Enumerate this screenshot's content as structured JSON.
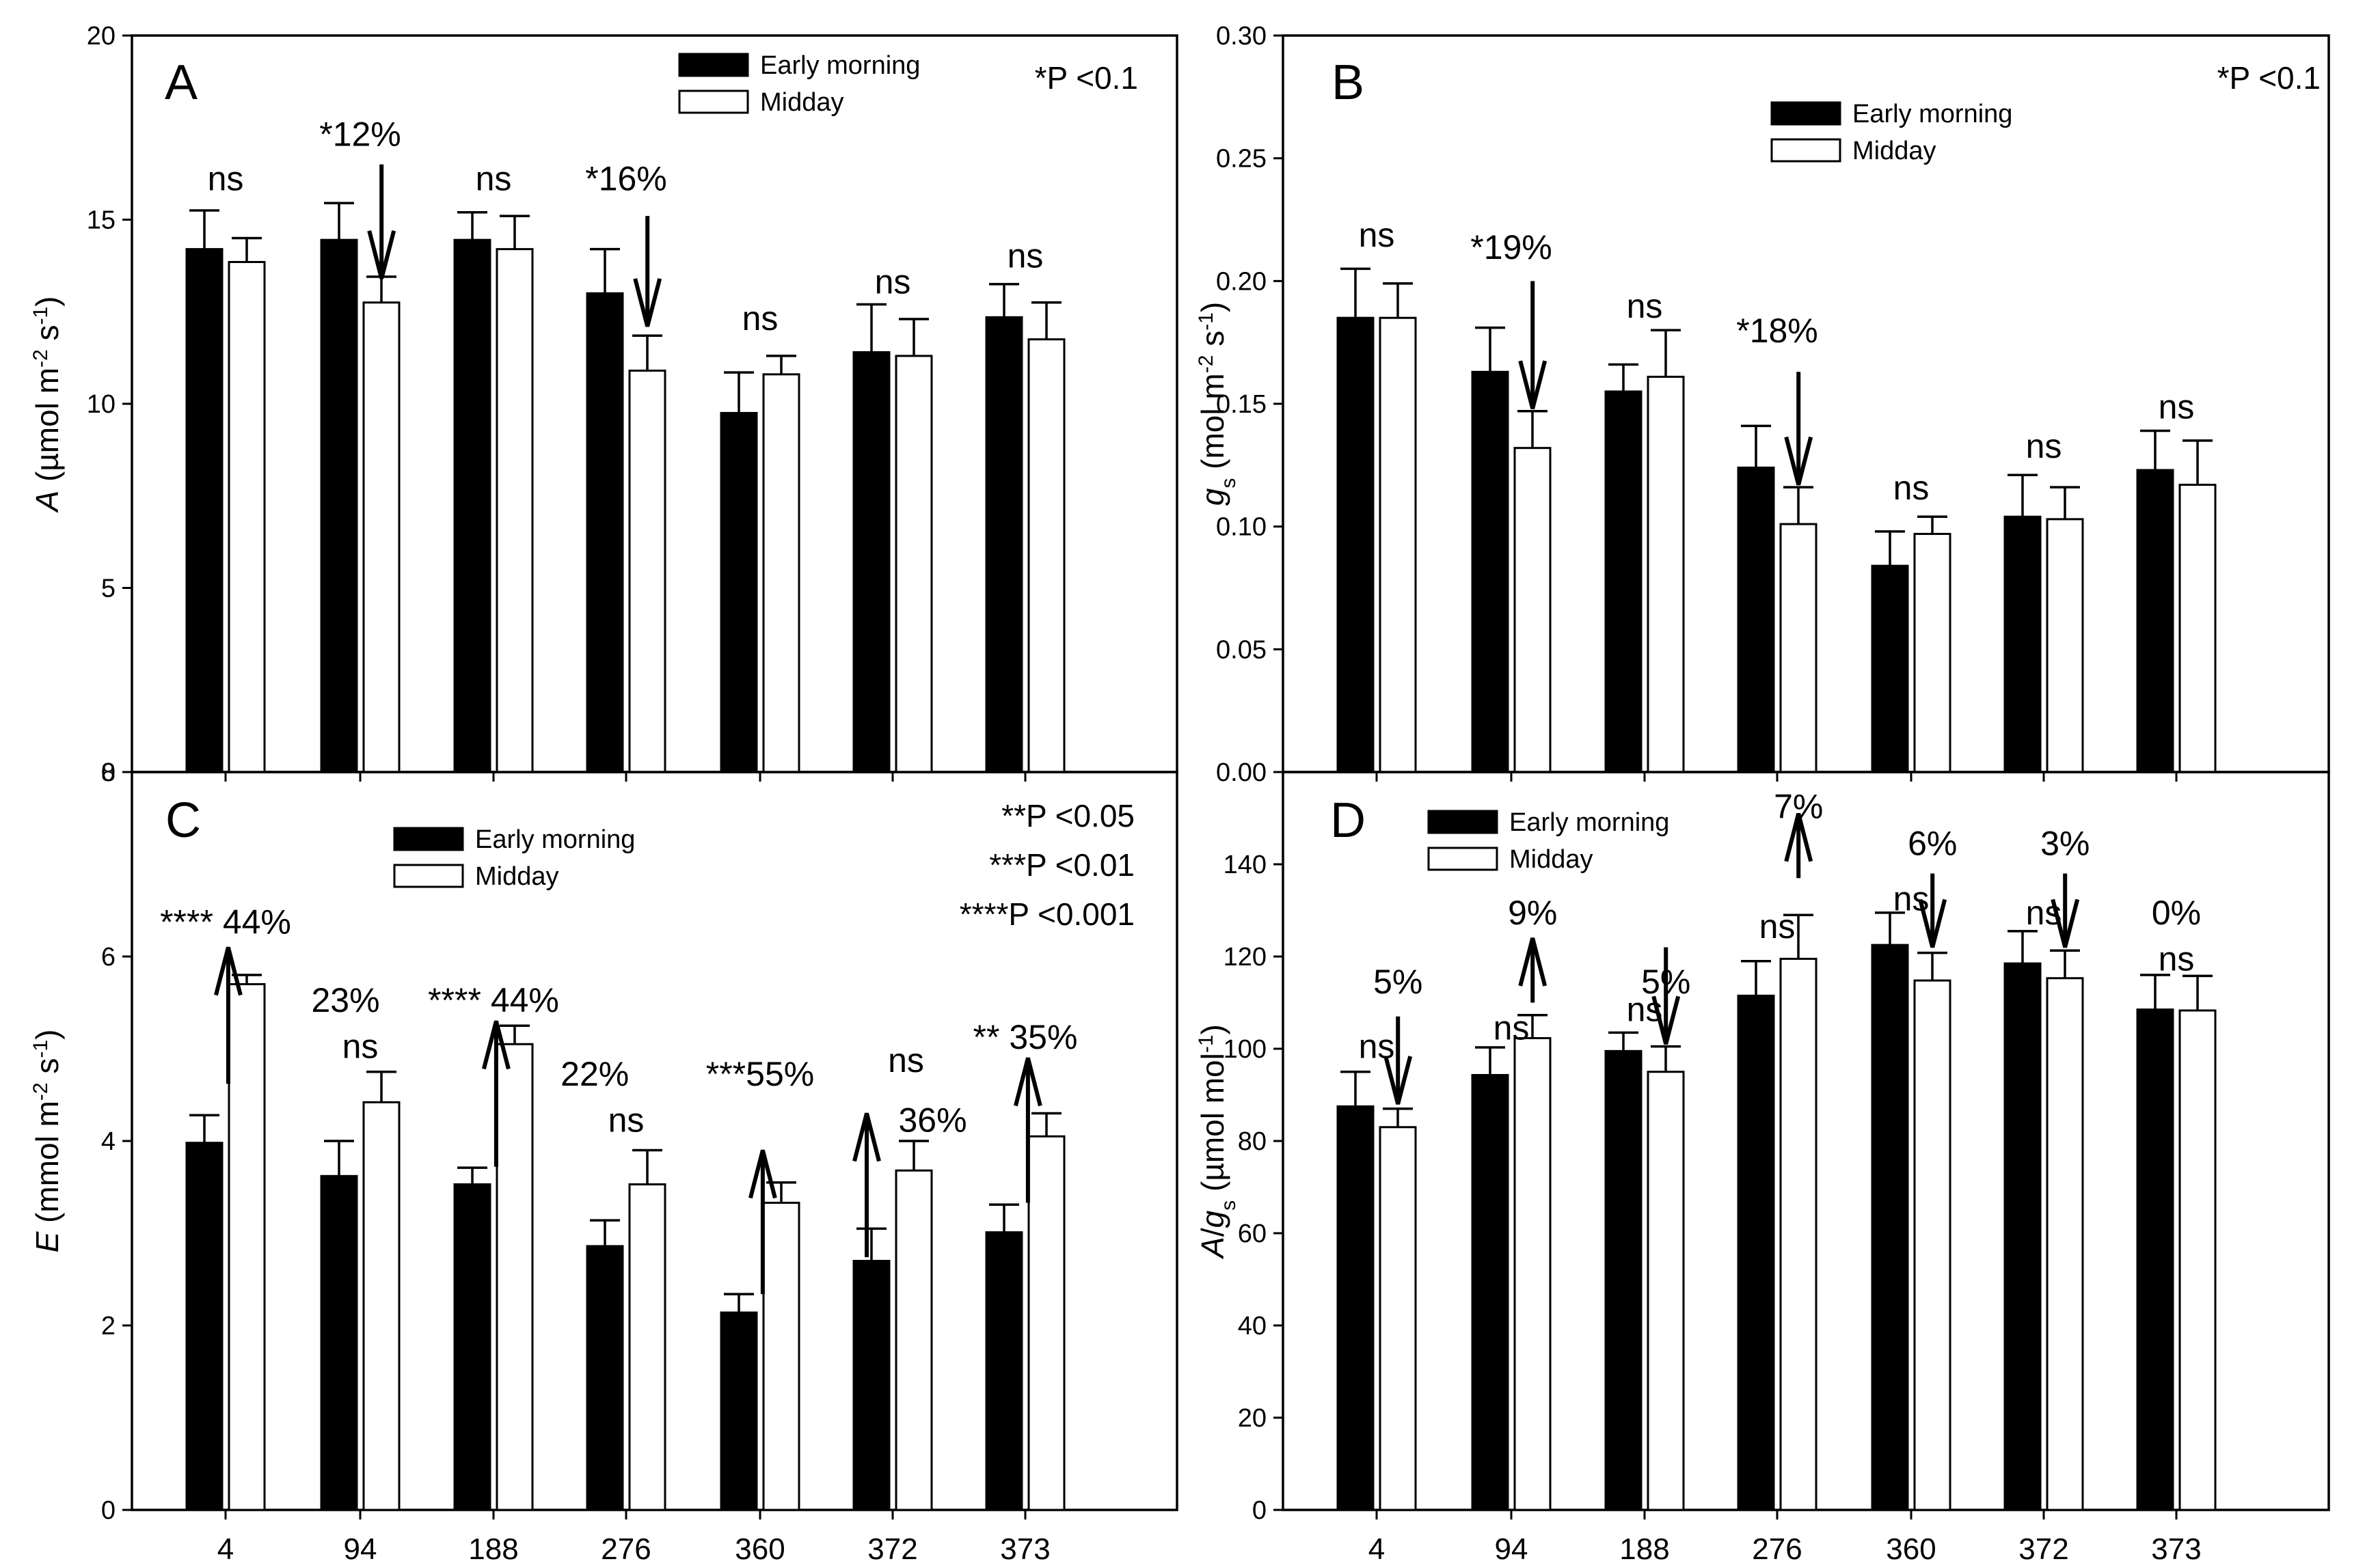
{
  "colors": {
    "early": "#000000",
    "midday": "#ffffff",
    "stroke": "#000000"
  },
  "chart_data": [
    {
      "type": "bar",
      "panel": "A",
      "ylabel_parts": [
        {
          "t": "A",
          "i": true
        },
        {
          "t": " (µmol m"
        },
        {
          "t": "-2",
          "s": "sup"
        },
        {
          "t": " s"
        },
        {
          "t": "-1",
          "s": "sup"
        },
        {
          "t": ")"
        }
      ],
      "ylim": [
        0,
        20
      ],
      "yticks": [
        0,
        5,
        10,
        15,
        20
      ],
      "ytick_labels": [
        "0",
        "5",
        "10",
        "15",
        "20"
      ],
      "show_xticklabels": false,
      "categories": [
        "4",
        "94",
        "188",
        "276",
        "360",
        "372",
        "373"
      ],
      "series": [
        {
          "name": "Early morning",
          "values": [
            14.2,
            14.45,
            14.45,
            13.0,
            9.75,
            11.4,
            12.35
          ],
          "errors": [
            1.05,
            1.0,
            0.75,
            1.2,
            1.1,
            1.3,
            0.9
          ]
        },
        {
          "name": "Midday",
          "values": [
            13.85,
            12.75,
            14.2,
            10.9,
            10.8,
            11.3,
            11.75
          ],
          "errors": [
            0.65,
            0.7,
            0.9,
            0.95,
            0.5,
            1.0,
            1.0
          ]
        }
      ],
      "legend": {
        "labels": [
          "Early morning",
          "Midday"
        ],
        "position": "top-center"
      },
      "significance": [
        "*P <0.1"
      ],
      "annotations": [
        {
          "text": "ns",
          "x": 0,
          "y": 15.8
        },
        {
          "text": "*12%",
          "x": 1,
          "y": 17.0
        },
        {
          "text": "ns",
          "x": 2,
          "y": 15.8
        },
        {
          "text": "*16%",
          "x": 3,
          "y": 15.8
        },
        {
          "text": "ns",
          "x": 4,
          "y": 12.0
        },
        {
          "text": "ns",
          "x": 5,
          "y": 13.0
        },
        {
          "text": "ns",
          "x": 6,
          "y": 13.7
        }
      ],
      "arrows": [
        {
          "x": 1.16,
          "from": 16.5,
          "to": 13.4
        },
        {
          "x": 3.16,
          "from": 15.1,
          "to": 12.1
        }
      ]
    },
    {
      "type": "bar",
      "panel": "B",
      "ylabel_parts": [
        {
          "t": "g",
          "i": true
        },
        {
          "t": "s",
          "s": "sub"
        },
        {
          "t": " (mol m"
        },
        {
          "t": "-2",
          "s": "sup"
        },
        {
          "t": " s"
        },
        {
          "t": "-1",
          "s": "sup"
        },
        {
          "t": ")"
        }
      ],
      "ylim": [
        0,
        0.3
      ],
      "yticks": [
        0,
        0.05,
        0.1,
        0.15,
        0.2,
        0.25,
        0.3
      ],
      "ytick_labels": [
        "0.00",
        "0.05",
        "0.10",
        "0.15",
        "0.20",
        "0.25",
        "0.30"
      ],
      "show_xticklabels": false,
      "categories": [
        "4",
        "94",
        "188",
        "276",
        "360",
        "372",
        "373"
      ],
      "series": [
        {
          "name": "Early morning",
          "values": [
            0.185,
            0.163,
            0.155,
            0.124,
            0.084,
            0.104,
            0.123
          ],
          "errors": [
            0.02,
            0.018,
            0.011,
            0.017,
            0.014,
            0.017,
            0.016
          ]
        },
        {
          "name": "Midday",
          "values": [
            0.185,
            0.132,
            0.161,
            0.101,
            0.097,
            0.103,
            0.117
          ],
          "errors": [
            0.014,
            0.015,
            0.019,
            0.015,
            0.007,
            0.013,
            0.018
          ]
        }
      ],
      "legend": {
        "labels": [
          "Early morning",
          "Midday"
        ],
        "position": "top-center"
      },
      "significance": [
        "*P <0.1"
      ],
      "annotations": [
        {
          "text": "ns",
          "x": 0,
          "y": 0.214
        },
        {
          "text": "*19%",
          "x": 1,
          "y": 0.209
        },
        {
          "text": "ns",
          "x": 2,
          "y": 0.185
        },
        {
          "text": "*18%",
          "x": 3,
          "y": 0.175
        },
        {
          "text": "ns",
          "x": 4,
          "y": 0.111
        },
        {
          "text": "ns",
          "x": 5,
          "y": 0.128
        },
        {
          "text": "ns",
          "x": 6,
          "y": 0.144
        }
      ],
      "arrows": [
        {
          "x": 1.16,
          "from": 0.2,
          "to": 0.148
        },
        {
          "x": 3.16,
          "from": 0.163,
          "to": 0.117
        }
      ]
    },
    {
      "type": "bar",
      "panel": "C",
      "ylabel_parts": [
        {
          "t": "E",
          "i": true
        },
        {
          "t": " (mmol m"
        },
        {
          "t": "-2",
          "s": "sup"
        },
        {
          "t": " s"
        },
        {
          "t": "-1",
          "s": "sup"
        },
        {
          "t": ")"
        }
      ],
      "ylim": [
        0,
        8
      ],
      "yticks": [
        0,
        2,
        4,
        6,
        8
      ],
      "ytick_labels": [
        "0",
        "2",
        "4",
        "6",
        "8"
      ],
      "show_xticklabels": true,
      "categories": [
        "4",
        "94",
        "188",
        "276",
        "360",
        "372",
        "373"
      ],
      "series": [
        {
          "name": "Early morning",
          "values": [
            3.98,
            3.62,
            3.53,
            2.86,
            2.14,
            2.7,
            3.01
          ],
          "errors": [
            0.3,
            0.38,
            0.18,
            0.28,
            0.2,
            0.35,
            0.3
          ]
        },
        {
          "name": "Midday",
          "values": [
            5.7,
            4.42,
            5.05,
            3.53,
            3.33,
            3.68,
            4.05
          ],
          "errors": [
            0.1,
            0.33,
            0.2,
            0.37,
            0.22,
            0.32,
            0.25
          ]
        }
      ],
      "legend": {
        "labels": [
          "Early morning",
          "Midday"
        ],
        "position": "top-center"
      },
      "significance": [
        "**P <0.05",
        "***P <0.01",
        "****P <0.001"
      ],
      "annotations": [
        {
          "text": "**** 44%",
          "x": 0.0,
          "y": 6.25
        },
        {
          "text": "23%",
          "x": 0.9,
          "y": 5.4
        },
        {
          "text": "ns",
          "x": 1.0,
          "y": 4.9
        },
        {
          "text": "**** 44%",
          "x": 2.0,
          "y": 5.4
        },
        {
          "text": "22%",
          "x": 2.76,
          "y": 4.6
        },
        {
          "text": "ns",
          "x": 3.0,
          "y": 4.1
        },
        {
          "text": "***55%",
          "x": 4.0,
          "y": 4.6
        },
        {
          "text": "ns",
          "x": 5.1,
          "y": 4.75
        },
        {
          "text": "36%",
          "x": 5.3,
          "y": 4.1
        },
        {
          "text": "** 35%",
          "x": 6.0,
          "y": 5.0
        }
      ],
      "arrows": [
        {
          "x": 0.02,
          "from": 4.62,
          "to": 6.1
        },
        {
          "x": 2.02,
          "from": 3.72,
          "to": 5.3
        },
        {
          "x": 4.02,
          "from": 2.34,
          "to": 3.9
        },
        {
          "x": 4.8,
          "from": 2.74,
          "to": 4.3
        },
        {
          "x": 6.02,
          "from": 3.33,
          "to": 4.9
        }
      ]
    },
    {
      "type": "bar",
      "panel": "D",
      "ylabel_parts": [
        {
          "t": "A",
          "i": true
        },
        {
          "t": "/"
        },
        {
          "t": "g",
          "i": true
        },
        {
          "t": "s",
          "s": "sub"
        },
        {
          "t": " (µmol mol"
        },
        {
          "t": "-1",
          "s": "sup"
        },
        {
          "t": ")"
        }
      ],
      "ylim": [
        0,
        160
      ],
      "yticks": [
        0,
        20,
        40,
        60,
        80,
        100,
        120,
        140
      ],
      "ytick_labels": [
        "0",
        "20",
        "40",
        "60",
        "80",
        "100",
        "120",
        "140"
      ],
      "show_xticklabels": true,
      "categories": [
        "4",
        "94",
        "188",
        "276",
        "360",
        "372",
        "373"
      ],
      "series": [
        {
          "name": "Early morning",
          "values": [
            87.5,
            94.3,
            99.5,
            111.5,
            122.5,
            118.5,
            108.5
          ],
          "errors": [
            7.5,
            6.0,
            4.0,
            7.5,
            7.0,
            7.0,
            7.5
          ]
        },
        {
          "name": "Midday",
          "values": [
            83.0,
            102.3,
            95.0,
            119.5,
            114.8,
            115.3,
            108.3
          ],
          "errors": [
            4.0,
            5.0,
            5.5,
            9.5,
            6.0,
            6.0,
            7.5
          ]
        }
      ],
      "legend": {
        "labels": [
          "Early morning",
          "Midday"
        ],
        "position": "top-left"
      },
      "significance": [],
      "annotations": [
        {
          "text": "ns",
          "x": 0,
          "y": 98
        },
        {
          "text": "5%",
          "x": 0.16,
          "y": 112
        },
        {
          "text": "ns",
          "x": 1,
          "y": 102
        },
        {
          "text": "9%",
          "x": 1.16,
          "y": 127
        },
        {
          "text": "ns",
          "x": 2,
          "y": 106
        },
        {
          "text": "5%",
          "x": 2.16,
          "y": 112
        },
        {
          "text": "ns",
          "x": 3,
          "y": 124
        },
        {
          "text": "7%",
          "x": 3.16,
          "y": 150
        },
        {
          "text": "ns",
          "x": 4,
          "y": 130
        },
        {
          "text": "6%",
          "x": 4.16,
          "y": 142
        },
        {
          "text": "ns",
          "x": 5,
          "y": 127
        },
        {
          "text": "3%",
          "x": 5.16,
          "y": 142
        },
        {
          "text": "0%",
          "x": 6.0,
          "y": 127
        },
        {
          "text": "ns",
          "x": 6.0,
          "y": 117
        }
      ],
      "arrows": [
        {
          "x": 0.16,
          "from": 107,
          "to": 88
        },
        {
          "x": 1.16,
          "from": 110,
          "to": 124
        },
        {
          "x": 2.16,
          "from": 122,
          "to": 101
        },
        {
          "x": 3.16,
          "from": 137,
          "to": 151
        },
        {
          "x": 4.16,
          "from": 138,
          "to": 122
        },
        {
          "x": 5.16,
          "from": 138,
          "to": 122
        }
      ]
    }
  ]
}
